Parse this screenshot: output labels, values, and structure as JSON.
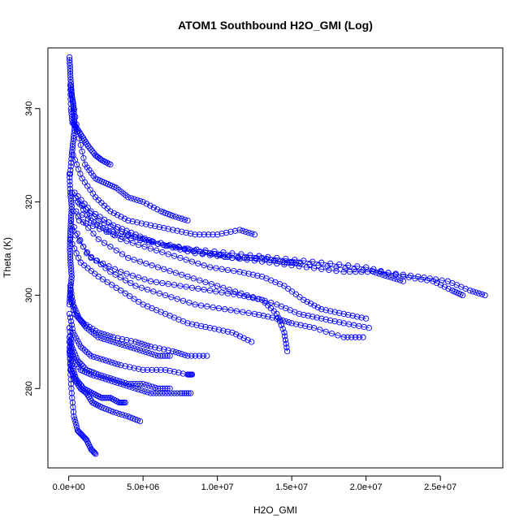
{
  "chart_data": {
    "type": "scatter",
    "title": "ATOM1 Southbound H2O_GMI (Log)",
    "xlabel": "H2O_GMI",
    "ylabel": "Theta (K)",
    "xlim": [
      -1400000,
      29200000
    ],
    "ylim": [
      263,
      353
    ],
    "x_ticks": [
      0,
      5000000,
      10000000,
      15000000,
      20000000,
      25000000
    ],
    "x_tick_labels": [
      "0.0e+00",
      "5.0e+06",
      "1.0e+07",
      "1.5e+07",
      "2.0e+07",
      "2.5e+07"
    ],
    "y_ticks": [
      280,
      300,
      320,
      340
    ],
    "y_tick_labels": [
      "280",
      "300",
      "320",
      "340"
    ],
    "grid": false,
    "marker": "open circle",
    "connected": true,
    "color": "#0000ff",
    "series": [
      {
        "x": [
          100000,
          150000,
          250000,
          500000,
          900000,
          1300000,
          1800000,
          2200000,
          2800000
        ],
        "y": [
          345,
          340,
          337,
          336,
          334,
          332,
          330,
          329,
          328
        ]
      },
      {
        "x": [
          200000,
          600000,
          1100000,
          1800000,
          2500000,
          3200000,
          4000000,
          5000000,
          6200000,
          7000000,
          8000000
        ],
        "y": [
          343,
          335,
          328,
          325,
          324,
          323,
          321,
          320,
          318,
          317,
          316
        ]
      },
      {
        "x": [
          300000,
          900000,
          1800000,
          2800000,
          4000000,
          5500000,
          7000000,
          8500000,
          10000000,
          11500000,
          12500000
        ],
        "y": [
          330,
          325,
          321,
          318,
          316,
          315,
          314,
          313,
          313,
          314,
          313
        ]
      },
      {
        "x": [
          400000,
          1500000,
          3000000,
          4500000,
          6000000,
          7800000,
          9500000,
          11000000,
          13000000,
          14500000,
          15500000
        ],
        "y": [
          322,
          318,
          315,
          313,
          311,
          310,
          309,
          308,
          308,
          307,
          307
        ]
      },
      {
        "x": [
          600000,
          2000000,
          4000000,
          6000000,
          8500000,
          11000000,
          13500000,
          16000000,
          18500000,
          20500000,
          21500000,
          22500000
        ],
        "y": [
          320,
          316,
          313,
          311,
          309,
          308,
          307,
          306,
          305,
          305,
          304,
          303
        ]
      },
      {
        "x": [
          500000,
          2500000,
          5000000,
          8000000,
          11000000,
          14000000,
          17000000,
          20000000,
          22500000,
          24500000,
          25800000,
          26500000
        ],
        "y": [
          318,
          314,
          312,
          310,
          309,
          308,
          307,
          306,
          304,
          303,
          301,
          300
        ]
      },
      {
        "x": [
          700000,
          3000000,
          6000000,
          9000000,
          12000000,
          15000000,
          18000000,
          21000000,
          23500000,
          25500000,
          27000000,
          28000000
        ],
        "y": [
          316,
          313,
          311,
          309,
          308,
          307,
          306,
          305,
          304,
          303,
          301,
          300
        ]
      },
      {
        "x": [
          200000,
          1500000,
          3500000,
          5500000,
          7500000,
          9500000,
          11500000,
          13000000,
          14500000,
          15800000,
          17000000,
          18500000,
          20000000
        ],
        "y": [
          322,
          316,
          312,
          310,
          308,
          306,
          305,
          304,
          302,
          299,
          297,
          296,
          295
        ]
      },
      {
        "x": [
          300000,
          2000000,
          4000000,
          6000000,
          8000000,
          10000000,
          12000000,
          14000000,
          15500000,
          17000000,
          18500000,
          20200000
        ],
        "y": [
          318,
          312,
          308,
          306,
          304,
          302,
          300,
          298,
          296,
          295,
          294,
          293
        ]
      },
      {
        "x": [
          150000,
          1200000,
          2800000,
          4500000,
          6500000,
          8500000,
          10500000,
          12500000,
          14000000,
          15000000,
          16500000,
          18500000,
          19800000
        ],
        "y": [
          316,
          309,
          305,
          302,
          300,
          298,
          297,
          296,
          295,
          294,
          293,
          291,
          291
        ]
      },
      {
        "x": [
          100000,
          800000,
          2000000,
          3500000,
          5000000,
          6500000,
          8000000,
          9500000,
          11000000,
          12300000
        ],
        "y": [
          312,
          307,
          304,
          301,
          298,
          296,
          294,
          293,
          292,
          290
        ]
      },
      {
        "x": [
          200000,
          1500000,
          3500000,
          5500000,
          7500000,
          9500000,
          11500000,
          13000000,
          14000000,
          14500000,
          14700000
        ],
        "y": [
          314,
          308,
          305,
          303,
          302,
          301,
          300,
          299,
          296,
          292,
          288
        ]
      },
      {
        "x": [
          100000,
          300000,
          700000,
          1200000,
          2000000,
          3000000,
          4000000,
          5000000,
          6000000,
          6800000
        ],
        "y": [
          302,
          298,
          295,
          293,
          291,
          290,
          289,
          288,
          287,
          287
        ]
      },
      {
        "x": [
          100000,
          400000,
          1000000,
          2000000,
          3000000,
          4500000,
          5500000,
          7000000,
          8000000,
          9300000
        ],
        "y": [
          300,
          296,
          294,
          292,
          291,
          290,
          289,
          288,
          287,
          287
        ]
      },
      {
        "x": [
          50000,
          300000,
          800000,
          1500000,
          2500000,
          3500000,
          5000000,
          6500000,
          8000000,
          8300000
        ],
        "y": [
          296,
          292,
          289,
          287,
          286,
          285,
          284,
          284,
          283,
          283
        ]
      },
      {
        "x": [
          50000,
          200000,
          600000,
          1200000,
          2000000,
          3000000,
          4000000,
          5000000,
          6000000,
          6800000
        ],
        "y": [
          293,
          289,
          286,
          284,
          283,
          282,
          281,
          281,
          280,
          280
        ]
      },
      {
        "x": [
          50000,
          250000,
          800000,
          1500000,
          2500000,
          3500000,
          4500000,
          5500000,
          6500000,
          7500000,
          8200000
        ],
        "y": [
          291,
          287,
          284,
          283,
          282,
          281,
          280,
          279,
          279,
          279,
          279
        ]
      },
      {
        "x": [
          50000,
          200000,
          500000,
          1000000,
          1600000,
          2200000,
          2800000,
          3400000,
          3800000
        ],
        "y": [
          290,
          285,
          282,
          280,
          279,
          278,
          278,
          277,
          277
        ]
      },
      {
        "x": [
          50000,
          150000,
          400000,
          800000,
          1200000,
          1600000,
          2200000,
          3000000,
          4000000,
          4800000
        ],
        "y": [
          288,
          284,
          282,
          280,
          279,
          277,
          276,
          275,
          274,
          273
        ]
      },
      {
        "x": [
          50000,
          100000,
          200000,
          350000,
          600000,
          900000,
          1200000,
          1500000,
          1800000
        ],
        "y": [
          290,
          284,
          279,
          274,
          271,
          270,
          269,
          267,
          266
        ]
      },
      {
        "x": [
          50000,
          100000,
          150000,
          200000,
          300000,
          350000,
          400000,
          300000,
          200000,
          100000
        ],
        "y": [
          351,
          348,
          345,
          343,
          341,
          339,
          336,
          333,
          330,
          326
        ]
      },
      {
        "x": [
          50000,
          100000,
          200000,
          150000,
          100000,
          80000,
          120000,
          200000,
          100000,
          50000
        ],
        "y": [
          326,
          322,
          319,
          316,
          313,
          310,
          307,
          304,
          301,
          298
        ]
      }
    ]
  }
}
